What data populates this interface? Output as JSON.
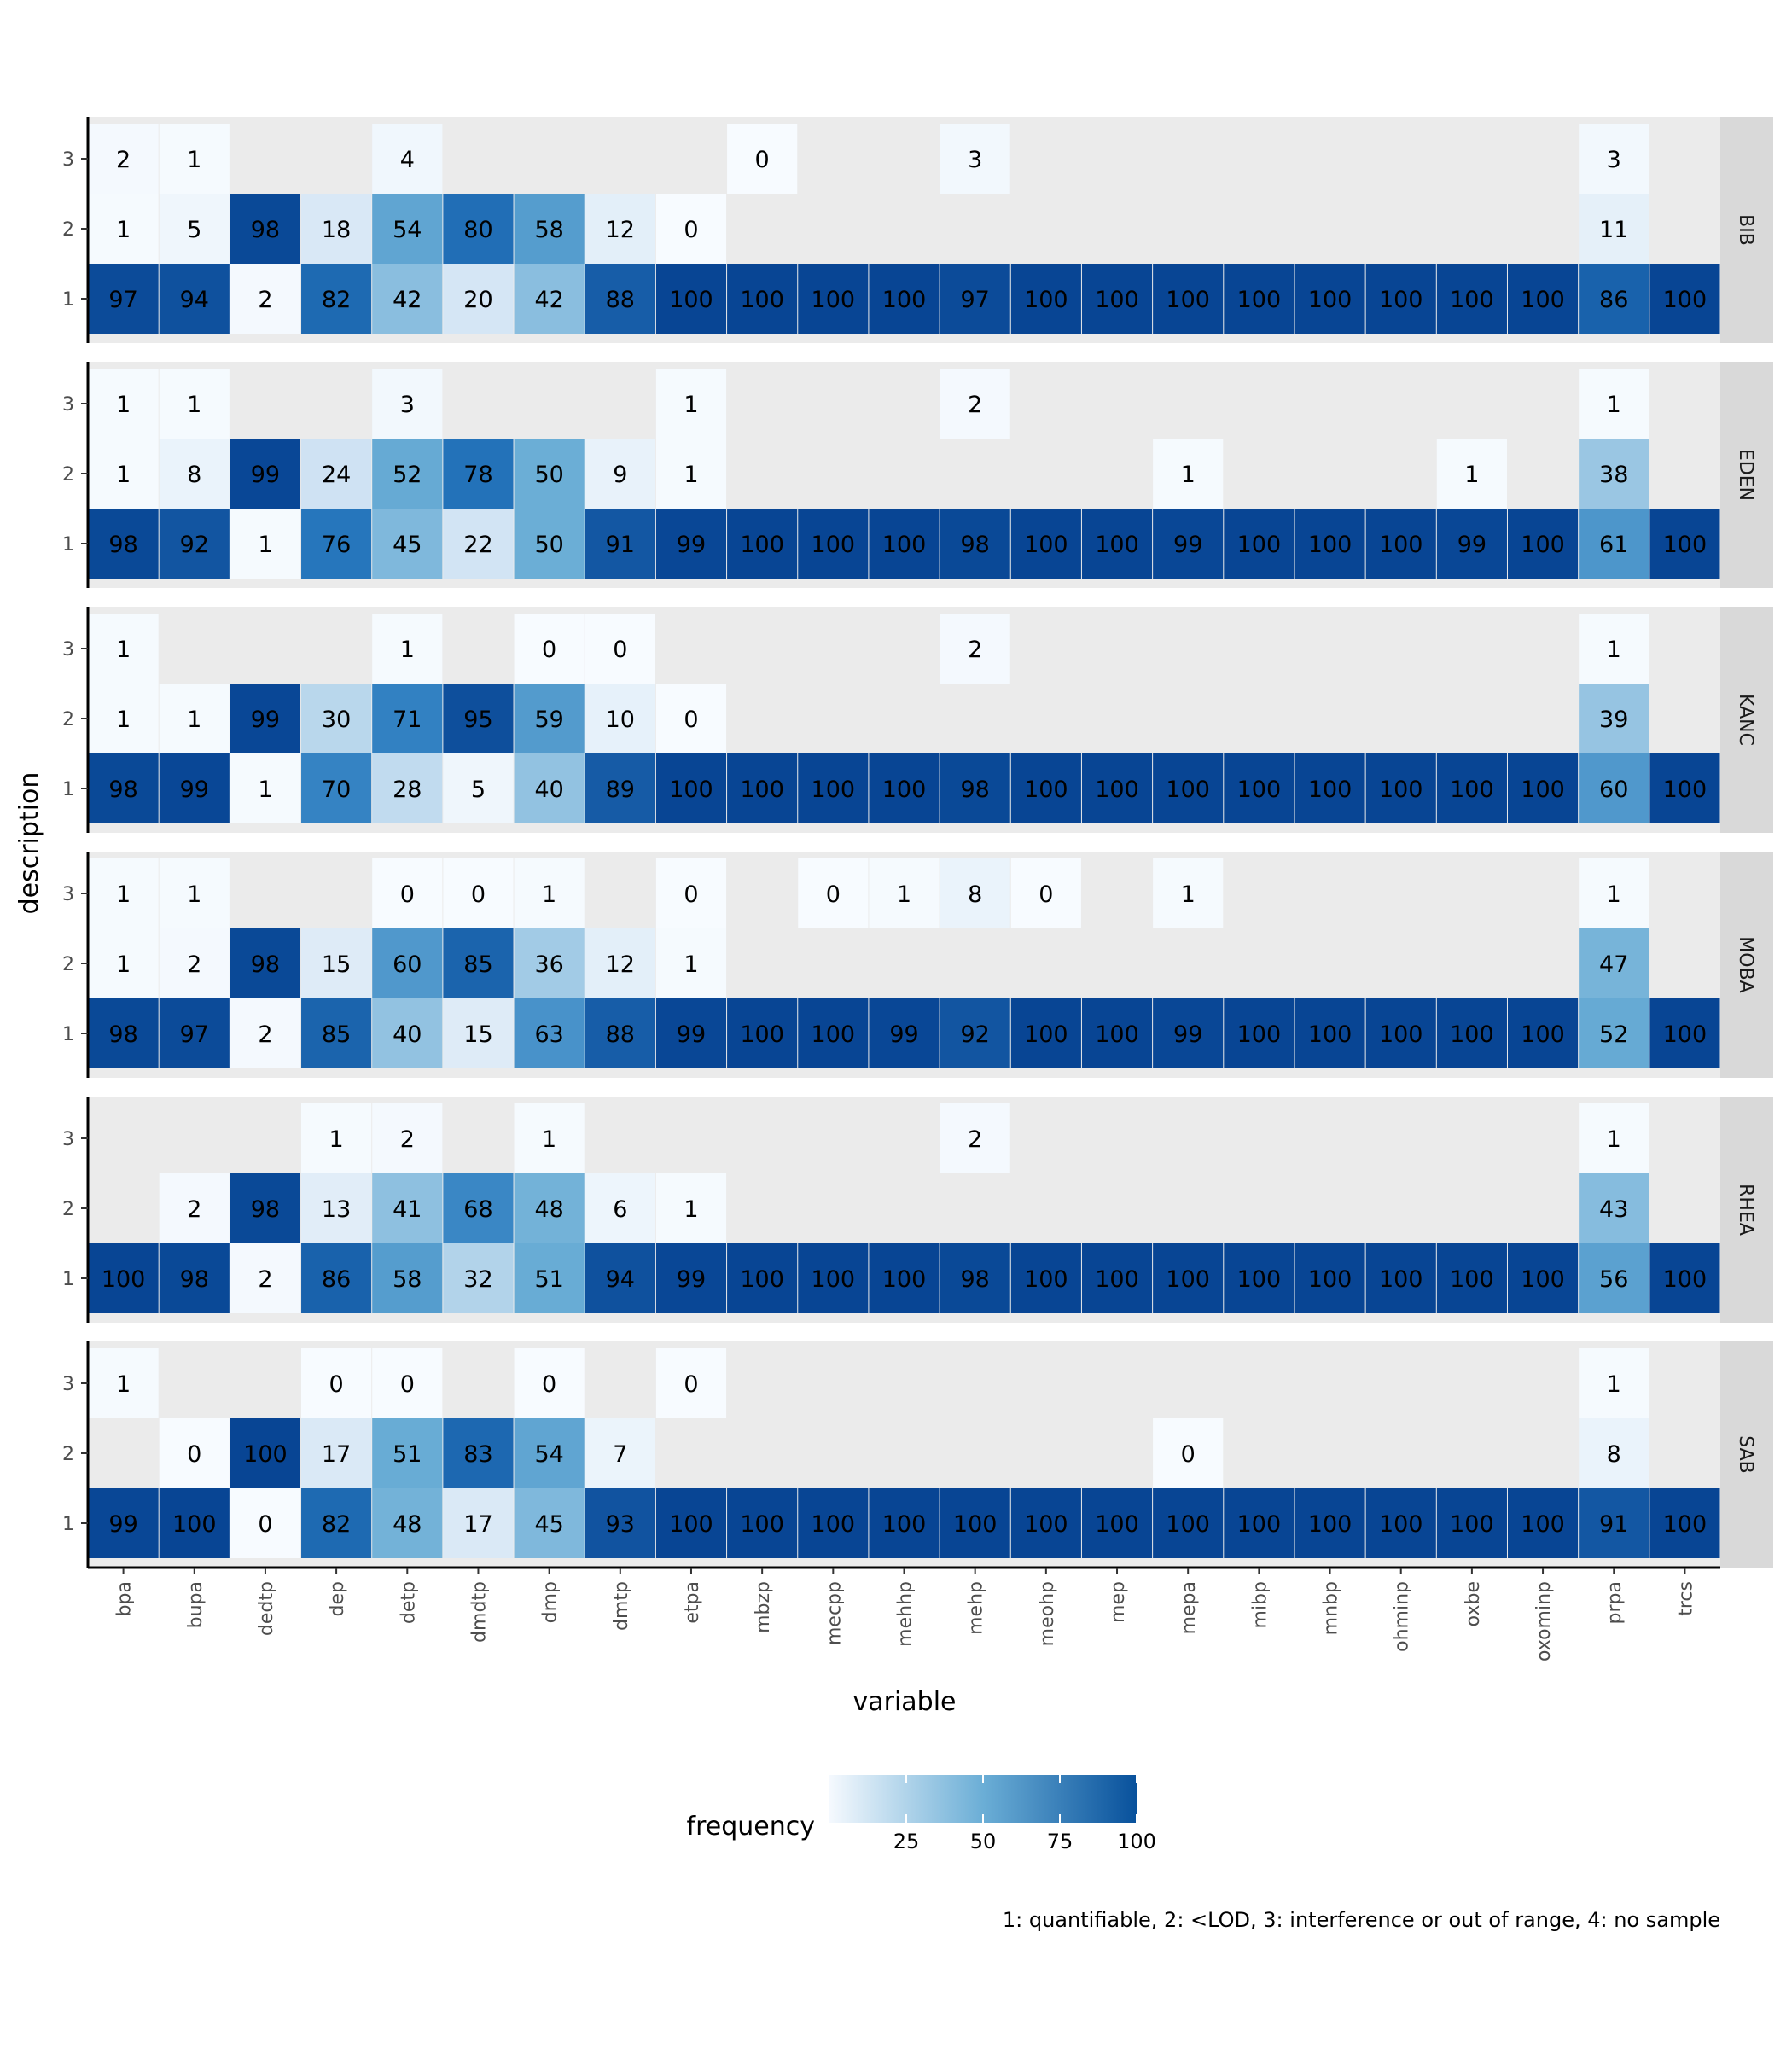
{
  "chart_data": {
    "type": "heatmap",
    "xlabel": "variable",
    "ylabel": "description",
    "x_categories": [
      "bpa",
      "bupa",
      "dedtp",
      "dep",
      "detp",
      "dmdtp",
      "dmp",
      "dmtp",
      "etpa",
      "mbzp",
      "mecpp",
      "mehhp",
      "mehp",
      "meohp",
      "mep",
      "mepa",
      "mibp",
      "mnbp",
      "ohminp",
      "oxbe",
      "oxominp",
      "prpa",
      "trcs"
    ],
    "y_categories": [
      "3",
      "2",
      "1"
    ],
    "legend": {
      "title": "frequency",
      "ticks": [
        25,
        50,
        75,
        100
      ],
      "range": [
        0,
        100
      ],
      "colors": [
        "#F7FBFF",
        "#08519C"
      ],
      "placement": "bottom"
    },
    "caption": "1: quantifiable, 2: <LOD, 3: interference or out of range, 4: no sample",
    "panels": [
      {
        "name": "BIB",
        "rows": {
          "3": {
            "bpa": 2,
            "bupa": 1,
            "detp": 4,
            "mbzp": 0,
            "mehp": 3,
            "prpa": 3
          },
          "2": {
            "bpa": 1,
            "bupa": 5,
            "dedtp": 98,
            "dep": 18,
            "detp": 54,
            "dmdtp": 80,
            "dmp": 58,
            "dmtp": 12,
            "etpa": 0,
            "prpa": 11
          },
          "1": {
            "bpa": 97,
            "bupa": 94,
            "dedtp": 2,
            "dep": 82,
            "detp": 42,
            "dmdtp": 20,
            "dmp": 42,
            "dmtp": 88,
            "etpa": 100,
            "mbzp": 100,
            "mecpp": 100,
            "mehhp": 100,
            "mehp": 97,
            "meohp": 100,
            "mep": 100,
            "mepa": 100,
            "mibp": 100,
            "mnbp": 100,
            "ohminp": 100,
            "oxbe": 100,
            "oxominp": 100,
            "prpa": 86,
            "trcs": 100
          }
        }
      },
      {
        "name": "EDEN",
        "rows": {
          "3": {
            "bpa": 1,
            "bupa": 1,
            "detp": 3,
            "etpa": 1,
            "mehp": 2,
            "prpa": 1
          },
          "2": {
            "bpa": 1,
            "bupa": 8,
            "dedtp": 99,
            "dep": 24,
            "detp": 52,
            "dmdtp": 78,
            "dmp": 50,
            "dmtp": 9,
            "etpa": 1,
            "mepa": 1,
            "oxbe": 1,
            "prpa": 38
          },
          "1": {
            "bpa": 98,
            "bupa": 92,
            "dedtp": 1,
            "dep": 76,
            "detp": 45,
            "dmdtp": 22,
            "dmp": 50,
            "dmtp": 91,
            "etpa": 99,
            "mbzp": 100,
            "mecpp": 100,
            "mehhp": 100,
            "mehp": 98,
            "meohp": 100,
            "mep": 100,
            "mepa": 99,
            "mibp": 100,
            "mnbp": 100,
            "ohminp": 100,
            "oxbe": 99,
            "oxominp": 100,
            "prpa": 61,
            "trcs": 100
          }
        }
      },
      {
        "name": "KANC",
        "rows": {
          "3": {
            "bpa": 1,
            "detp": 1,
            "dmp": 0,
            "dmtp": 0,
            "mehp": 2,
            "prpa": 1
          },
          "2": {
            "bpa": 1,
            "bupa": 1,
            "dedtp": 99,
            "dep": 30,
            "detp": 71,
            "dmdtp": 95,
            "dmp": 59,
            "dmtp": 10,
            "etpa": 0,
            "prpa": 39
          },
          "1": {
            "bpa": 98,
            "bupa": 99,
            "dedtp": 1,
            "dep": 70,
            "detp": 28,
            "dmdtp": 5,
            "dmp": 40,
            "dmtp": 89,
            "etpa": 100,
            "mbzp": 100,
            "mecpp": 100,
            "mehhp": 100,
            "mehp": 98,
            "meohp": 100,
            "mep": 100,
            "mepa": 100,
            "mibp": 100,
            "mnbp": 100,
            "ohminp": 100,
            "oxbe": 100,
            "oxominp": 100,
            "prpa": 60,
            "trcs": 100
          }
        }
      },
      {
        "name": "MOBA",
        "rows": {
          "3": {
            "bpa": 1,
            "bupa": 1,
            "detp": 0,
            "dmdtp": 0,
            "dmp": 1,
            "etpa": 0,
            "mecpp": 0,
            "mehhp": 1,
            "mehp": 8,
            "meohp": 0,
            "mepa": 1,
            "prpa": 1
          },
          "2": {
            "bpa": 1,
            "bupa": 2,
            "dedtp": 98,
            "dep": 15,
            "detp": 60,
            "dmdtp": 85,
            "dmp": 36,
            "dmtp": 12,
            "etpa": 1,
            "prpa": 47
          },
          "1": {
            "bpa": 98,
            "bupa": 97,
            "dedtp": 2,
            "dep": 85,
            "detp": 40,
            "dmdtp": 15,
            "dmp": 63,
            "dmtp": 88,
            "etpa": 99,
            "mbzp": 100,
            "mecpp": 100,
            "mehhp": 99,
            "mehp": 92,
            "meohp": 100,
            "mep": 100,
            "mepa": 99,
            "mibp": 100,
            "mnbp": 100,
            "ohminp": 100,
            "oxbe": 100,
            "oxominp": 100,
            "prpa": 52,
            "trcs": 100
          }
        }
      },
      {
        "name": "RHEA",
        "rows": {
          "3": {
            "dep": 1,
            "detp": 2,
            "dmp": 1,
            "mehp": 2,
            "prpa": 1
          },
          "2": {
            "bupa": 2,
            "dedtp": 98,
            "dep": 13,
            "detp": 41,
            "dmdtp": 68,
            "dmp": 48,
            "dmtp": 6,
            "etpa": 1,
            "prpa": 43
          },
          "1": {
            "bpa": 100,
            "bupa": 98,
            "dedtp": 2,
            "dep": 86,
            "detp": 58,
            "dmdtp": 32,
            "dmp": 51,
            "dmtp": 94,
            "etpa": 99,
            "mbzp": 100,
            "mecpp": 100,
            "mehhp": 100,
            "mehp": 98,
            "meohp": 100,
            "mep": 100,
            "mepa": 100,
            "mibp": 100,
            "mnbp": 100,
            "ohminp": 100,
            "oxbe": 100,
            "oxominp": 100,
            "prpa": 56,
            "trcs": 100
          }
        }
      },
      {
        "name": "SAB",
        "rows": {
          "3": {
            "bpa": 1,
            "dep": 0,
            "detp": 0,
            "dmp": 0,
            "etpa": 0,
            "prpa": 1
          },
          "2": {
            "bupa": 0,
            "dedtp": 100,
            "dep": 17,
            "detp": 51,
            "dmdtp": 83,
            "dmp": 54,
            "dmtp": 7,
            "mepa": 0,
            "prpa": 8
          },
          "1": {
            "bpa": 99,
            "bupa": 100,
            "dedtp": 0,
            "dep": 82,
            "detp": 48,
            "dmdtp": 17,
            "dmp": 45,
            "dmtp": 93,
            "etpa": 100,
            "mbzp": 100,
            "mecpp": 100,
            "mehhp": 100,
            "mehp": 100,
            "meohp": 100,
            "mep": 100,
            "mepa": 100,
            "mibp": 100,
            "mnbp": 100,
            "ohminp": 100,
            "oxbe": 100,
            "oxominp": 100,
            "prpa": 91,
            "trcs": 100
          }
        }
      }
    ]
  }
}
